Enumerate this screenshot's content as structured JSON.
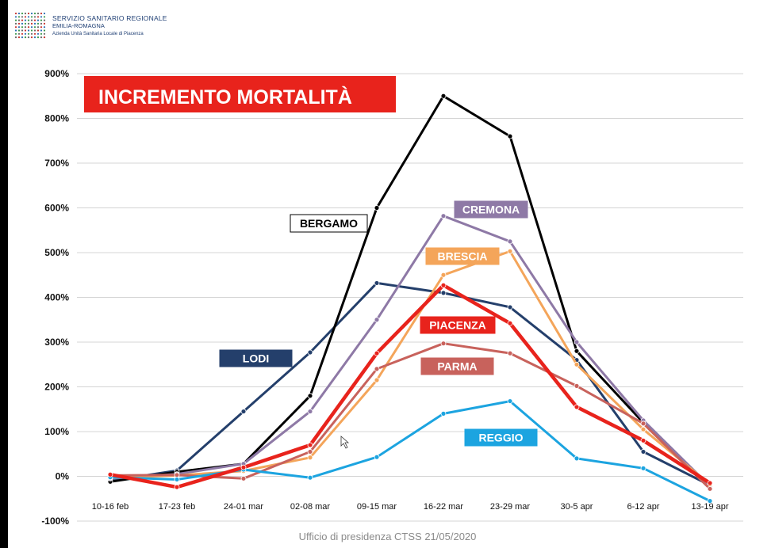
{
  "header": {
    "org_line1": "SERVIZIO SANITARIO REGIONALE",
    "org_line2": "EMILIA-ROMAGNA",
    "org_line3": "Azienda Unità Sanitaria Locale di Piacenza"
  },
  "footer": {
    "text": "Ufficio di presidenza CTSS 21/05/2020"
  },
  "chart_data": {
    "type": "line",
    "title": "INCREMENTO MORTALITÀ",
    "categories": [
      "10-16 feb",
      "17-23 feb",
      "24-01 mar",
      "02-08 mar",
      "09-15 mar",
      "16-22 mar",
      "23-29 mar",
      "30-5 apr",
      "6-12 apr",
      "13-19 apr"
    ],
    "ylim": [
      -100,
      900
    ],
    "yticks": [
      -100,
      0,
      100,
      200,
      300,
      400,
      500,
      600,
      700,
      800,
      900
    ],
    "ytick_labels": [
      "-100%",
      "0%",
      "100%",
      "200%",
      "300%",
      "400%",
      "500%",
      "600%",
      "700%",
      "800%",
      "900%"
    ],
    "grid": true,
    "series": [
      {
        "name": "BERGAMO",
        "color": "#000000",
        "values": [
          -12,
          10,
          28,
          180,
          600,
          850,
          760,
          280,
          120,
          -22
        ]
      },
      {
        "name": "CREMONA",
        "color": "#8e79a6",
        "values": [
          -5,
          5,
          28,
          145,
          350,
          582,
          525,
          300,
          125,
          -22
        ]
      },
      {
        "name": "BRESCIA",
        "color": "#f4a55a",
        "values": [
          -3,
          2,
          12,
          42,
          215,
          450,
          503,
          250,
          105,
          -18
        ]
      },
      {
        "name": "LODI",
        "color": "#243f6b",
        "values": [
          -10,
          13,
          145,
          277,
          432,
          410,
          378,
          260,
          55,
          -20
        ]
      },
      {
        "name": "PARMA",
        "color": "#c8625c",
        "values": [
          2,
          3,
          -5,
          55,
          240,
          297,
          275,
          202,
          118,
          -28
        ]
      },
      {
        "name": "PIACENZA",
        "color": "#e8231c",
        "values": [
          4,
          -24,
          20,
          70,
          275,
          427,
          342,
          155,
          80,
          -15
        ]
      },
      {
        "name": "REGGIO",
        "color": "#1ca4e0",
        "values": [
          -2,
          -7,
          15,
          -3,
          43,
          140,
          168,
          40,
          18,
          -55
        ]
      }
    ],
    "labels": [
      {
        "text": "BERGAMO",
        "bg": "#ffffff",
        "fg": "#000000",
        "border": "#000000"
      },
      {
        "text": "CREMONA",
        "bg": "#8e79a6",
        "fg": "#ffffff",
        "border": "#8e79a6"
      },
      {
        "text": "BRESCIA",
        "bg": "#f4a55a",
        "fg": "#ffffff",
        "border": "#f4a55a"
      },
      {
        "text": "LODI",
        "bg": "#243f6b",
        "fg": "#ffffff",
        "border": "#243f6b"
      },
      {
        "text": "PIACENZA",
        "bg": "#e8231c",
        "fg": "#ffffff",
        "border": "#e8231c"
      },
      {
        "text": "PARMA",
        "bg": "#c8625c",
        "fg": "#ffffff",
        "border": "#c8625c"
      },
      {
        "text": "REGGIO",
        "bg": "#1ca4e0",
        "fg": "#ffffff",
        "border": "#1ca4e0"
      }
    ],
    "title_style": {
      "bg": "#e8231c",
      "fg": "#ffffff"
    }
  }
}
